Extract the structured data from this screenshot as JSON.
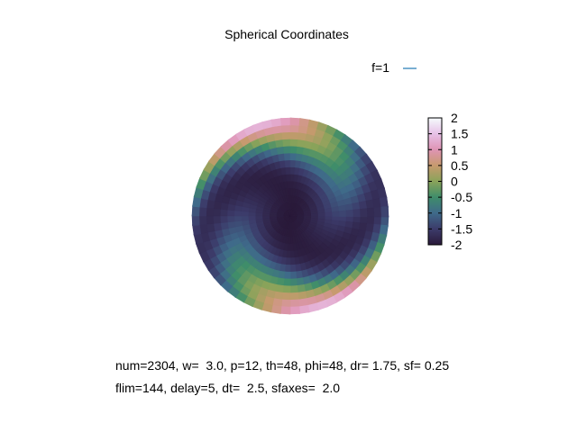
{
  "chart_data": {
    "type": "heatmap",
    "title": "Spherical Coordinates",
    "legend": {
      "entries": [
        {
          "label": "f=1",
          "color": "#1f77b4"
        }
      ],
      "placement": "top-right"
    },
    "colorbar": {
      "range": [
        -2,
        2
      ],
      "ticks": [
        "2",
        "1.5",
        "1",
        "0.5",
        "0",
        "-0.5",
        "-1",
        "-1.5",
        "-2"
      ],
      "tick_values": [
        2,
        1.5,
        1,
        0.5,
        0,
        -0.5,
        -1,
        -1.5,
        -2
      ],
      "palette": [
        "#2a1a3a",
        "#3c3b6a",
        "#3f6a8a",
        "#3f8d6a",
        "#8aa35a",
        "#c79a6e",
        "#df94b4",
        "#e7c1e7",
        "#f5fbfd"
      ]
    },
    "annotations": [
      "num=2304, w=  3.0, p=12, th=48, phi=48, dr= 1.75, sf= 0.25",
      "flim=144, delay=5, dt=  2.5, sfaxes=  2.0"
    ]
  }
}
